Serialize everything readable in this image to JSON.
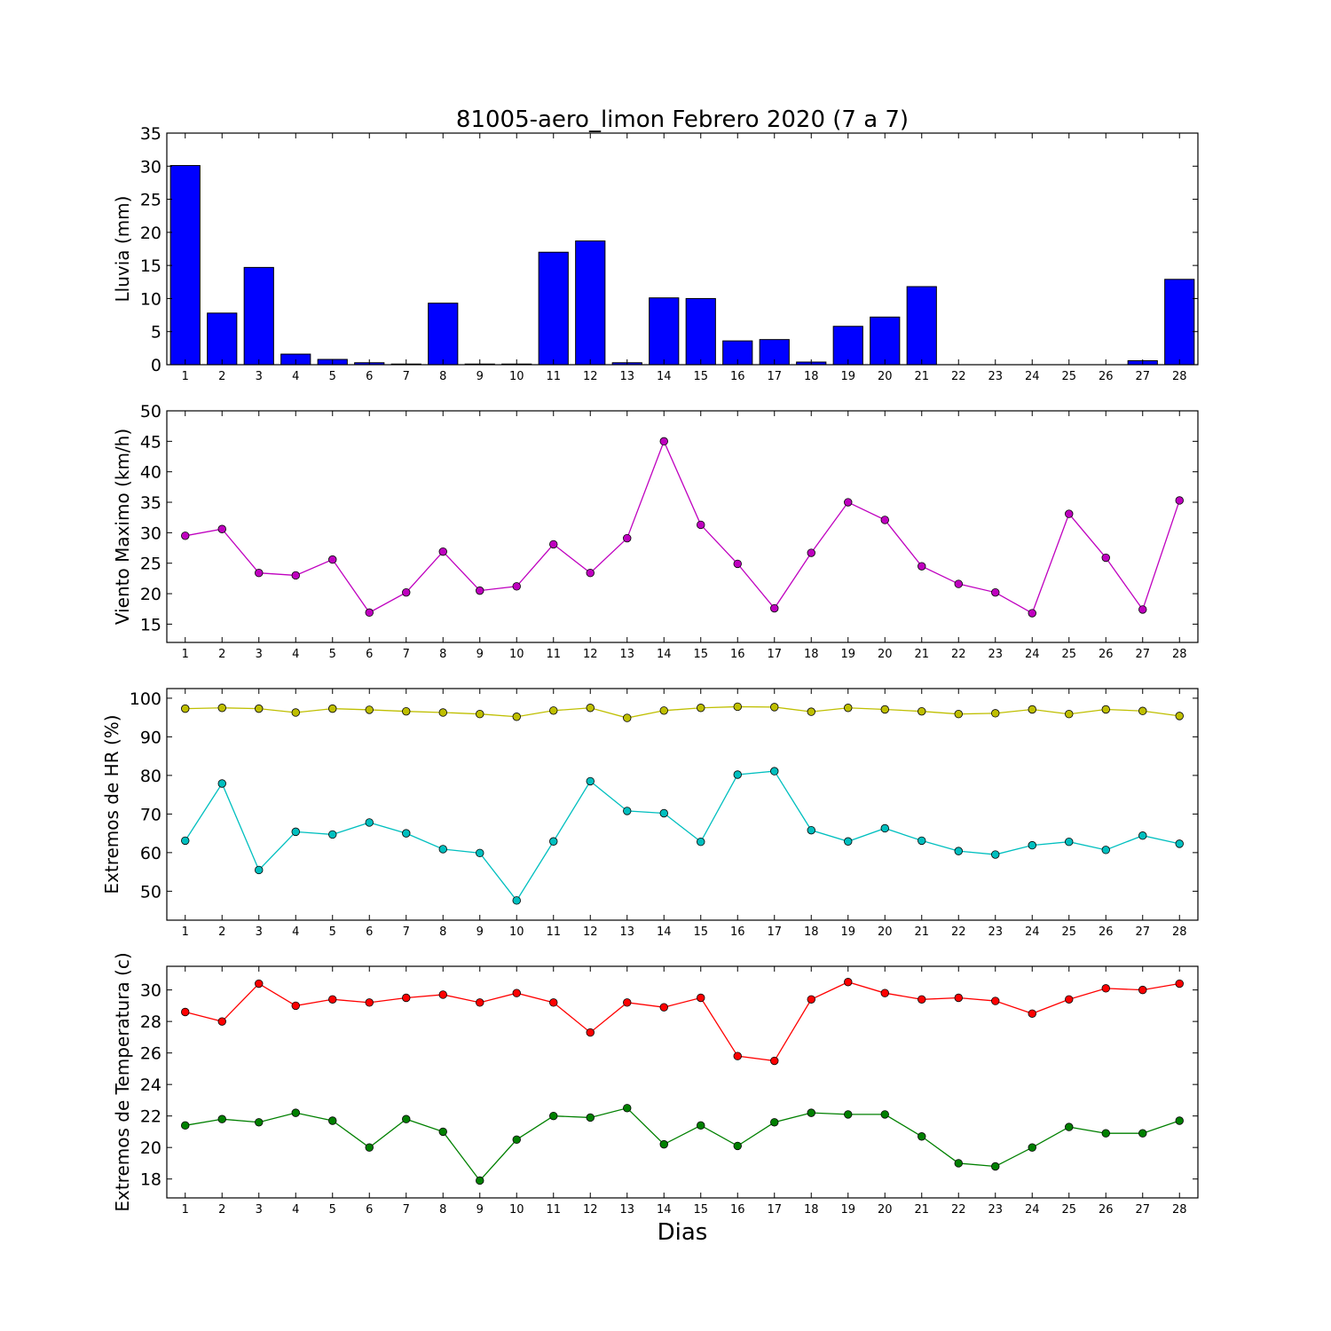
{
  "figure": {
    "title": "81005-aero_limon Febrero 2020  (7 a 7)",
    "xlabel": "Dias"
  },
  "chart_data": [
    {
      "type": "bar",
      "ylabel": "Lluvia (mm)",
      "ylim": [
        0,
        35
      ],
      "yticks": [
        0,
        5,
        10,
        15,
        20,
        25,
        30,
        35
      ],
      "x": [
        1,
        2,
        3,
        4,
        5,
        6,
        7,
        8,
        9,
        10,
        11,
        12,
        13,
        14,
        15,
        16,
        17,
        18,
        19,
        20,
        21,
        22,
        23,
        24,
        25,
        26,
        27,
        28
      ],
      "series": [
        {
          "color": "#0000ff",
          "values": [
            30.1,
            7.8,
            14.7,
            1.6,
            0.8,
            0.3,
            0.1,
            9.3,
            0.1,
            0.1,
            17.0,
            18.7,
            0.3,
            10.1,
            10.0,
            3.6,
            3.8,
            0.4,
            5.8,
            7.2,
            11.8,
            0,
            0,
            0,
            0,
            0,
            0.6,
            12.9
          ]
        }
      ]
    },
    {
      "type": "line",
      "ylabel": "Viento Maximo (km/h)",
      "ylim": [
        12,
        50
      ],
      "yticks": [
        15,
        20,
        25,
        30,
        35,
        40,
        45,
        50
      ],
      "x": [
        1,
        2,
        3,
        4,
        5,
        6,
        7,
        8,
        9,
        10,
        11,
        12,
        13,
        14,
        15,
        16,
        17,
        18,
        19,
        20,
        21,
        22,
        23,
        24,
        25,
        26,
        27,
        28
      ],
      "series": [
        {
          "color": "#bf00bf",
          "values": [
            29.5,
            30.6,
            23.4,
            23.0,
            25.6,
            16.9,
            20.2,
            26.9,
            20.5,
            21.2,
            28.1,
            23.4,
            29.1,
            45.0,
            31.3,
            24.9,
            17.6,
            26.7,
            35.0,
            32.1,
            24.5,
            21.6,
            20.2,
            16.8,
            33.1,
            25.9,
            17.4,
            35.3
          ]
        }
      ]
    },
    {
      "type": "line",
      "ylabel": "Extremos de HR (%)",
      "ylim": [
        42.5,
        102.5
      ],
      "yticks": [
        50,
        60,
        70,
        80,
        90,
        100
      ],
      "x": [
        1,
        2,
        3,
        4,
        5,
        6,
        7,
        8,
        9,
        10,
        11,
        12,
        13,
        14,
        15,
        16,
        17,
        18,
        19,
        20,
        21,
        22,
        23,
        24,
        25,
        26,
        27,
        28
      ],
      "series": [
        {
          "color": "#bfbf00",
          "values": [
            97.3,
            97.5,
            97.3,
            96.3,
            97.3,
            97.0,
            96.6,
            96.3,
            95.9,
            95.2,
            96.8,
            97.5,
            94.9,
            96.8,
            97.5,
            97.8,
            97.7,
            96.5,
            97.5,
            97.1,
            96.6,
            95.9,
            96.1,
            97.1,
            95.9,
            97.1,
            96.7,
            95.4
          ]
        },
        {
          "color": "#00bfbf",
          "values": [
            63.1,
            77.9,
            55.5,
            65.4,
            64.7,
            67.8,
            65.0,
            60.9,
            59.9,
            47.6,
            62.9,
            78.5,
            70.8,
            70.2,
            62.8,
            80.2,
            81.1,
            65.8,
            62.9,
            66.3,
            63.1,
            60.4,
            59.5,
            61.9,
            62.8,
            60.7,
            64.4,
            62.3
          ]
        }
      ]
    },
    {
      "type": "line",
      "ylabel": "Extremos de Temperatura (c)",
      "ylim": [
        16.8,
        31.5
      ],
      "yticks": [
        18,
        20,
        22,
        24,
        26,
        28,
        30
      ],
      "x": [
        1,
        2,
        3,
        4,
        5,
        6,
        7,
        8,
        9,
        10,
        11,
        12,
        13,
        14,
        15,
        16,
        17,
        18,
        19,
        20,
        21,
        22,
        23,
        24,
        25,
        26,
        27,
        28
      ],
      "series": [
        {
          "color": "#ff0000",
          "values": [
            28.6,
            28.0,
            30.4,
            29.0,
            29.4,
            29.2,
            29.5,
            29.7,
            29.2,
            29.8,
            29.2,
            27.3,
            29.2,
            28.9,
            29.5,
            25.8,
            25.5,
            29.4,
            30.5,
            29.8,
            29.4,
            29.5,
            29.3,
            28.5,
            29.4,
            30.1,
            30.0,
            30.4
          ]
        },
        {
          "color": "#008000",
          "values": [
            21.4,
            21.8,
            21.6,
            22.2,
            21.7,
            20.0,
            21.8,
            21.0,
            17.9,
            20.5,
            22.0,
            21.9,
            22.5,
            20.2,
            21.4,
            20.1,
            21.6,
            22.2,
            22.1,
            22.1,
            20.7,
            19.0,
            18.8,
            20.0,
            21.3,
            20.9,
            20.9,
            21.7
          ]
        }
      ]
    }
  ]
}
